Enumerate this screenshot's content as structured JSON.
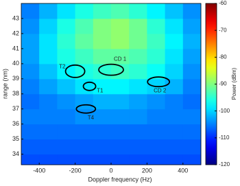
{
  "chart_data": {
    "type": "heatmap",
    "colormap": "jet",
    "xlabel": "Doppler frequency (Hz)",
    "ylabel": "range (nm)",
    "colorbar_label": "Power (dBm)",
    "xbins": [
      -500,
      -400,
      -300,
      -200,
      -100,
      0,
      100,
      200,
      300,
      400,
      500
    ],
    "ybins": [
      33.3,
      34,
      35,
      36,
      37,
      38,
      39,
      40,
      41,
      42,
      43,
      44
    ],
    "values": [
      [
        -108,
        -108,
        -108,
        -108,
        -108,
        -108,
        -108,
        -108,
        -108,
        -108
      ],
      [
        -107,
        -107,
        -107,
        -107,
        -107,
        -107,
        -107,
        -107,
        -107,
        -107
      ],
      [
        -106,
        -106,
        -106,
        -106,
        -106,
        -106,
        -106,
        -106,
        -106,
        -106
      ],
      [
        -105,
        -105,
        -105,
        -104,
        -104,
        -104,
        -104,
        -105,
        -105,
        -105
      ],
      [
        -106,
        -105,
        -104,
        -103,
        -102,
        -102,
        -103,
        -104,
        -105,
        -106
      ],
      [
        -105,
        -103,
        -101,
        -99,
        -98,
        -98,
        -99,
        -100,
        -102,
        -105
      ],
      [
        -104,
        -101,
        -98,
        -96,
        -95,
        -94,
        -95,
        -97,
        -100,
        -104
      ],
      [
        -103,
        -99,
        -96,
        -94,
        -92,
        -92,
        -93,
        -95,
        -99,
        -103
      ],
      [
        -103,
        -99,
        -95,
        -92,
        -90,
        -89,
        -91,
        -94,
        -98,
        -102
      ],
      [
        -104,
        -100,
        -96,
        -93,
        -90,
        -89,
        -91,
        -95,
        -99,
        -103
      ],
      [
        -105,
        -102,
        -99,
        -96,
        -94,
        -93,
        -95,
        -98,
        -101,
        -104
      ]
    ],
    "xlim": [
      -500,
      500
    ],
    "ylim": [
      33.3,
      44
    ],
    "xticks": [
      -400,
      -200,
      0,
      200,
      400
    ],
    "yticks": [
      34,
      35,
      36,
      37,
      38,
      39,
      40,
      41,
      42,
      43
    ],
    "clim": [
      -120,
      -60
    ],
    "cticks": [
      -120,
      -110,
      -100,
      -90,
      -80,
      -70,
      -60
    ],
    "annotations": [
      {
        "text": "CD 1",
        "x": 0,
        "y": 39.6,
        "label_x": 50,
        "label_y": 40.3
      },
      {
        "text": "T2",
        "x": -200,
        "y": 39.5,
        "label_x": -272,
        "label_y": 39.8
      },
      {
        "text": "T1",
        "x": -120,
        "y": 38.5,
        "label_x": -62,
        "label_y": 38.2
      },
      {
        "text": "CD 2",
        "x": 264,
        "y": 38.8,
        "label_x": 272,
        "label_y": 38.2
      },
      {
        "text": "T4",
        "x": -140,
        "y": 37.0,
        "label_x": -113,
        "label_y": 36.4
      }
    ]
  }
}
